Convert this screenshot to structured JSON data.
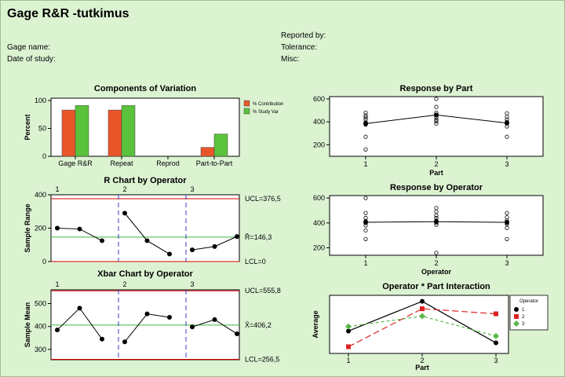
{
  "report": {
    "title": "Gage R&R -tutkimus",
    "gage_name": "Gage name:",
    "date_of_study": "Date of study:",
    "reported_by": "Reported by:",
    "tolerance": "Tolerance:",
    "misc": "Misc:"
  },
  "colors": {
    "background": "#dcf3d2",
    "contribution": "#e8562a",
    "study_var": "#5ac23b",
    "limit_line": "#dd0000",
    "center_line": "#3cb83c",
    "divider": "#3c3cc8"
  },
  "chart_data": [
    {
      "id": "components",
      "type": "bar",
      "title": "Components of Variation",
      "ylabel": "Percent",
      "ylim": [
        0,
        100
      ],
      "yticks": [
        0,
        50,
        100
      ],
      "categories": [
        "Gage R&R",
        "Repeat",
        "Reprod",
        "Part-to-Part"
      ],
      "series": [
        {
          "name": "% Contribution",
          "values": [
            83,
            83,
            0,
            16
          ]
        },
        {
          "name": "% Study Var",
          "values": [
            91,
            91,
            0,
            40
          ]
        }
      ],
      "legend": "top-right"
    },
    {
      "id": "rchart",
      "type": "line",
      "title": "R Chart by Operator",
      "ylabel": "Sample Range",
      "ylim": [
        0,
        400
      ],
      "yticks": [
        0,
        200,
        400
      ],
      "operators": [
        "1",
        "2",
        "3"
      ],
      "groups": [
        [
          200,
          195,
          125
        ],
        [
          290,
          125,
          45
        ],
        [
          70,
          90,
          150
        ]
      ],
      "ucl": 376.5,
      "center": 146.3,
      "lcl": 0,
      "ucl_label": "UCL=376,5",
      "center_label": "R̄=146,3",
      "lcl_label": "LCL=0"
    },
    {
      "id": "xbar",
      "type": "line",
      "title": "Xbar Chart by Operator",
      "ylabel": "Sample Mean",
      "ylim": [
        255,
        560
      ],
      "yticks": [
        300,
        400,
        500
      ],
      "operators": [
        "1",
        "2",
        "3"
      ],
      "groups": [
        [
          385,
          480,
          345
        ],
        [
          333,
          455,
          440
        ],
        [
          398,
          430,
          368
        ]
      ],
      "ucl": 555.8,
      "center": 406.2,
      "lcl": 256.5,
      "ucl_label": "UCL=555,8",
      "center_label": "X̄=406,2",
      "lcl_label": "LCL=256,5"
    },
    {
      "id": "resp_part",
      "type": "scatter",
      "title": "Response by Part",
      "xlabel": "Part",
      "ylim": [
        100,
        620
      ],
      "yticks": [
        200,
        400,
        600
      ],
      "categories": [
        "1",
        "2",
        "3"
      ],
      "points": [
        [
          160,
          270,
          375,
          395,
          420,
          440,
          455,
          480
        ],
        [
          385,
          405,
          420,
          440,
          460,
          480,
          530,
          600
        ],
        [
          270,
          360,
          385,
          400,
          420,
          445,
          475
        ]
      ],
      "means": [
        385,
        460,
        390
      ]
    },
    {
      "id": "resp_operator",
      "type": "scatter",
      "title": "Response by Operator",
      "xlabel": "Operator",
      "ylim": [
        140,
        620
      ],
      "yticks": [
        200,
        400,
        600
      ],
      "categories": [
        "1",
        "2",
        "3"
      ],
      "points": [
        [
          270,
          340,
          380,
          400,
          415,
          440,
          480,
          600
        ],
        [
          160,
          385,
          400,
          420,
          440,
          460,
          490,
          520
        ],
        [
          270,
          360,
          390,
          400,
          420,
          445,
          480
        ]
      ],
      "means": [
        405,
        410,
        405
      ]
    },
    {
      "id": "interaction",
      "type": "line",
      "title": "Operator * Part Interaction",
      "xlabel": "Part",
      "ylabel": "Average",
      "ylim": [
        320,
        500
      ],
      "categories": [
        "1",
        "2",
        "3"
      ],
      "legend_title": "Operator",
      "series": [
        {
          "name": "1",
          "values": [
            385,
            485,
            345
          ],
          "color": "#000000",
          "marker": "circle",
          "dash": ""
        },
        {
          "name": "2",
          "values": [
            332,
            460,
            443
          ],
          "color": "#dd2222",
          "marker": "square",
          "dash": "8,4"
        },
        {
          "name": "3",
          "values": [
            400,
            435,
            368
          ],
          "color": "#5ab84a",
          "marker": "diamond",
          "dash": "4,3"
        }
      ]
    }
  ]
}
